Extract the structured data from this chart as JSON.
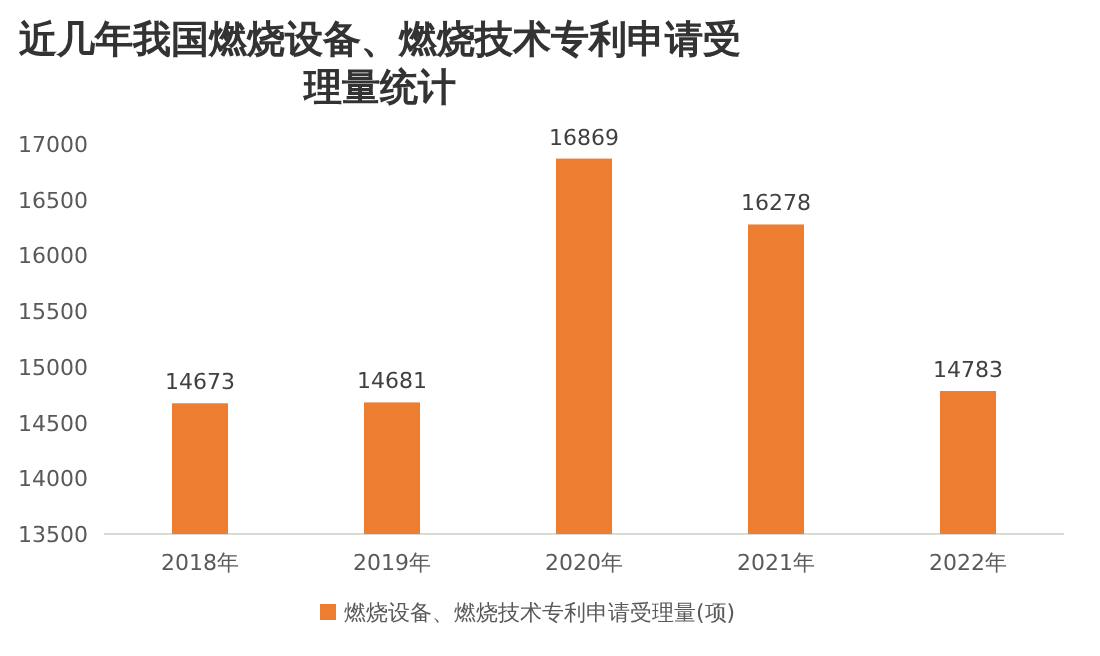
{
  "chart_data": {
    "type": "bar",
    "title": "近几年我国燃烧设备、燃烧技术专利申请受理量统计",
    "categories": [
      "2018年",
      "2019年",
      "2020年",
      "2021年",
      "2022年"
    ],
    "series": [
      {
        "name": "燃烧设备、燃烧技术专利申请受理量(项)",
        "color": "#ed7d31",
        "values": [
          14673,
          14681,
          16869,
          16278,
          14783
        ]
      }
    ],
    "ylim": [
      13500,
      17000
    ],
    "yticks": [
      13500,
      14000,
      14500,
      15000,
      15500,
      16000,
      16500,
      17000
    ],
    "data_labels": true,
    "legend": "bottom",
    "grid": false
  }
}
